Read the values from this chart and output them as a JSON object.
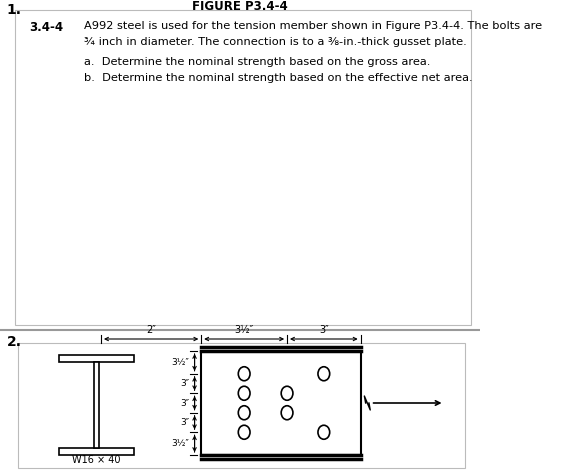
{
  "title_top": "FIGURE P3.4-4",
  "section_num_1": "1.",
  "section_num_2": "2.",
  "problem_num": "3.4-4",
  "problem_text_line1": "A992 steel is used for the tension member shown in Figure P3.4-4. The bolts are",
  "problem_text_line2": "¾ inch in diameter. The connection is to a ⅜-in.-thick gusset plate.",
  "problem_text_a": "a.  Determine the nominal strength based on the gross area.",
  "problem_text_b": "b.  Determine the nominal strength based on the effective net area.",
  "w_label": "W16 × 40",
  "spacing_labels": [
    "3½″",
    "3″",
    "3″",
    "3″",
    "3½″"
  ],
  "dim_horiz": [
    "2″",
    "3½″",
    "3″"
  ],
  "bg_color": "#ffffff",
  "text_color": "#000000",
  "box_edge_color": "#bbbbbb",
  "sep_line_color": "#999999"
}
